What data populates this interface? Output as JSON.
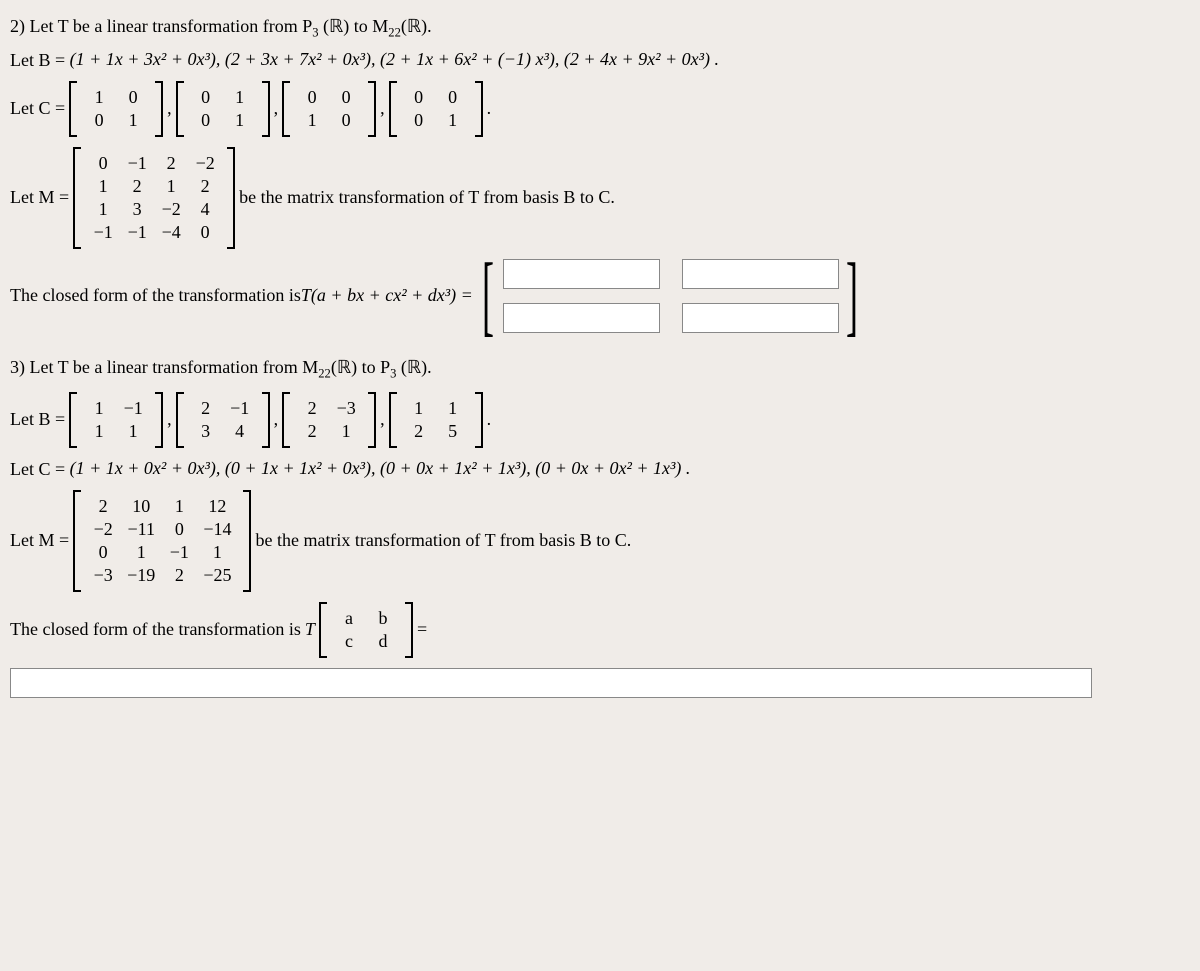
{
  "q2": {
    "prompt": "2) Let T be a linear transformation from P",
    "prompt_sub1": "3",
    "prompt_mid": " (ℝ) to M",
    "prompt_sub2": "22",
    "prompt_end": "(ℝ).",
    "letB_label": "Let B = ",
    "letB_polys": "(1 + 1x + 3x² + 0x³), (2 + 3x + 7x² + 0x³), (2 + 1x + 6x² + (−1) x³), (2 + 4x + 9x² + 0x³) .",
    "letC_label": "Let C = ",
    "C_m1": [
      [
        "1",
        "0"
      ],
      [
        "0",
        "1"
      ]
    ],
    "C_m2": [
      [
        "0",
        "1"
      ],
      [
        "0",
        "1"
      ]
    ],
    "C_m3": [
      [
        "0",
        "0"
      ],
      [
        "1",
        "0"
      ]
    ],
    "C_m4": [
      [
        "0",
        "0"
      ],
      [
        "0",
        "1"
      ]
    ],
    "letM_label": "Let M = ",
    "M": [
      [
        "0",
        "−1",
        "2",
        "−2"
      ],
      [
        "1",
        "2",
        "1",
        "2"
      ],
      [
        "1",
        "3",
        "−2",
        "4"
      ],
      [
        "−1",
        "−1",
        "−4",
        "0"
      ]
    ],
    "M_desc": " be the matrix transformation of T from basis B to C.",
    "closed_label": "The closed form of the transformation is ",
    "closed_expr": "T(a + bx + cx² + dx³) = "
  },
  "q3": {
    "prompt": "3) Let T be a linear transformation from M",
    "prompt_sub1": "22",
    "prompt_mid": "(ℝ) to P",
    "prompt_sub2": "3",
    "prompt_end": " (ℝ).",
    "letB_label": "Let B = ",
    "B_m1": [
      [
        "1",
        "−1"
      ],
      [
        "1",
        "1"
      ]
    ],
    "B_m2": [
      [
        "2",
        "−1"
      ],
      [
        "3",
        "4"
      ]
    ],
    "B_m3": [
      [
        "2",
        "−3"
      ],
      [
        "2",
        "1"
      ]
    ],
    "B_m4": [
      [
        "1",
        "1"
      ],
      [
        "2",
        "5"
      ]
    ],
    "letC_label": "Let C = ",
    "letC_polys": "(1 + 1x + 0x² + 0x³), (0 + 1x + 1x² + 0x³), (0 + 0x + 1x² + 1x³), (0 + 0x + 0x² + 1x³) .",
    "letM_label": "Let M = ",
    "M": [
      [
        "2",
        "10",
        "1",
        "12"
      ],
      [
        "−2",
        "−11",
        "0",
        "−14"
      ],
      [
        "0",
        "1",
        "−1",
        "1"
      ],
      [
        "−3",
        "−19",
        "2",
        "−25"
      ]
    ],
    "M_desc": " be the matrix transformation of T from basis B to C.",
    "closed_label": "The closed form of the transformation is ",
    "closed_T": "T",
    "abcd": [
      [
        "a",
        "b"
      ],
      [
        "c",
        "d"
      ]
    ],
    "equals": " ="
  }
}
